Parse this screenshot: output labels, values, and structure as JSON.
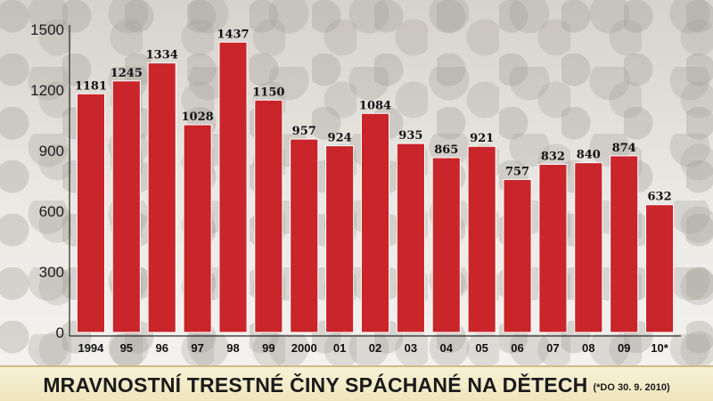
{
  "chart_data": {
    "type": "bar",
    "categories": [
      "1994",
      "95",
      "96",
      "97",
      "98",
      "99",
      "2000",
      "01",
      "02",
      "03",
      "04",
      "05",
      "06",
      "07",
      "08",
      "09",
      "10*"
    ],
    "values": [
      1181,
      1245,
      1334,
      1028,
      1437,
      1150,
      957,
      924,
      1084,
      935,
      865,
      921,
      757,
      832,
      840,
      874,
      632
    ],
    "data_labels": [
      "1181",
      "1245",
      "1334",
      "1028",
      "1437",
      "1150",
      "957",
      "924",
      "1084",
      "935",
      "865",
      "921",
      "757",
      "832",
      "840",
      "874",
      "632"
    ],
    "y_ticks": [
      0,
      300,
      600,
      900,
      1200,
      1500
    ],
    "ylim": [
      0,
      1500
    ],
    "grid": false,
    "title": "MRAVNOSTNÍ TRESTNÉ ČINY SPÁCHANÉ NA DĚTECH",
    "note": "(*DO 30. 9. 2010)",
    "bar_color": "#c9252a"
  }
}
